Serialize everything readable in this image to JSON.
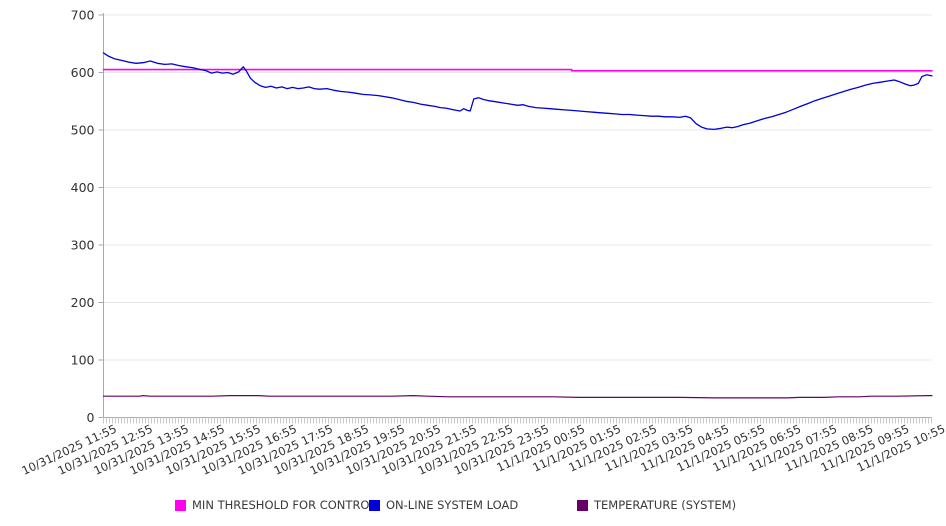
{
  "chart_data": {
    "type": "line",
    "title": "",
    "xlabel": "",
    "ylabel": "",
    "ylim": [
      0,
      700
    ],
    "y_ticks": [
      0,
      100,
      200,
      300,
      400,
      500,
      600,
      700
    ],
    "x_range_hours": 23,
    "grid": "horizontal",
    "legend_position": "bottom",
    "x_labels": [
      "10/31/2025 11:55",
      "10/31/2025 12:55",
      "10/31/2025 13:55",
      "10/31/2025 14:55",
      "10/31/2025 15:55",
      "10/31/2025 16:55",
      "10/31/2025 17:55",
      "10/31/2025 18:55",
      "10/31/2025 19:55",
      "10/31/2025 20:55",
      "10/31/2025 21:55",
      "10/31/2025 22:55",
      "10/31/2025 23:55",
      "11/1/2025 00:55",
      "11/1/2025 01:55",
      "11/1/2025 02:55",
      "11/1/2025 03:55",
      "11/1/2025 04:55",
      "11/1/2025 05:55",
      "11/1/2025 06:55",
      "11/1/2025 07:55",
      "11/1/2025 08:55",
      "11/1/2025 09:55",
      "11/1/2025 10:55"
    ],
    "colors": {
      "axis": "#aaaaaa",
      "grid": "#e8e8e8",
      "minor_tick": "#c9c9c9",
      "tick_text": "#333333"
    },
    "series": [
      {
        "name": "MIN THRESHOLD FOR CONTROL",
        "color": "#ff00f0",
        "width": 1.6,
        "points": [
          [
            0,
            605
          ],
          [
            13,
            605
          ],
          [
            13,
            603
          ],
          [
            23,
            603
          ]
        ]
      },
      {
        "name": "ON-LINE SYSTEM LOAD",
        "color": "#0000d8",
        "width": 1.3,
        "points": [
          [
            0,
            634
          ],
          [
            0.15,
            628
          ],
          [
            0.3,
            624
          ],
          [
            0.5,
            621
          ],
          [
            0.7,
            618
          ],
          [
            0.9,
            616
          ],
          [
            1.1,
            617
          ],
          [
            1.3,
            620
          ],
          [
            1.5,
            616
          ],
          [
            1.7,
            614
          ],
          [
            1.9,
            615
          ],
          [
            2.1,
            612
          ],
          [
            2.3,
            610
          ],
          [
            2.5,
            608
          ],
          [
            2.7,
            605
          ],
          [
            2.85,
            603
          ],
          [
            3,
            599
          ],
          [
            3.15,
            601
          ],
          [
            3.3,
            599
          ],
          [
            3.45,
            600
          ],
          [
            3.6,
            597
          ],
          [
            3.75,
            601
          ],
          [
            3.88,
            610
          ],
          [
            3.98,
            601
          ],
          [
            4.08,
            590
          ],
          [
            4.2,
            583
          ],
          [
            4.35,
            577
          ],
          [
            4.5,
            574
          ],
          [
            4.65,
            576
          ],
          [
            4.8,
            573
          ],
          [
            4.95,
            575
          ],
          [
            5.1,
            572
          ],
          [
            5.25,
            574
          ],
          [
            5.4,
            572
          ],
          [
            5.55,
            573
          ],
          [
            5.7,
            575
          ],
          [
            5.85,
            572
          ],
          [
            6,
            571
          ],
          [
            6.2,
            572
          ],
          [
            6.4,
            569
          ],
          [
            6.6,
            567
          ],
          [
            6.8,
            566
          ],
          [
            7,
            564
          ],
          [
            7.2,
            562
          ],
          [
            7.4,
            561
          ],
          [
            7.6,
            560
          ],
          [
            7.8,
            558
          ],
          [
            8,
            556
          ],
          [
            8.2,
            553
          ],
          [
            8.4,
            550
          ],
          [
            8.6,
            548
          ],
          [
            8.8,
            545
          ],
          [
            9,
            543
          ],
          [
            9.2,
            541
          ],
          [
            9.35,
            539
          ],
          [
            9.5,
            538
          ],
          [
            9.65,
            536
          ],
          [
            9.8,
            534
          ],
          [
            9.9,
            533
          ],
          [
            10,
            537
          ],
          [
            10.1,
            534
          ],
          [
            10.18,
            533
          ],
          [
            10.28,
            554
          ],
          [
            10.42,
            556
          ],
          [
            10.55,
            553
          ],
          [
            10.7,
            551
          ],
          [
            10.9,
            549
          ],
          [
            11.1,
            547
          ],
          [
            11.3,
            545
          ],
          [
            11.5,
            543
          ],
          [
            11.65,
            544
          ],
          [
            11.8,
            541
          ],
          [
            12,
            539
          ],
          [
            12.2,
            538
          ],
          [
            12.4,
            537
          ],
          [
            12.6,
            536
          ],
          [
            12.8,
            535
          ],
          [
            13,
            534
          ],
          [
            13.2,
            533
          ],
          [
            13.4,
            532
          ],
          [
            13.6,
            531
          ],
          [
            13.8,
            530
          ],
          [
            14,
            529
          ],
          [
            14.2,
            528
          ],
          [
            14.4,
            527
          ],
          [
            14.6,
            527
          ],
          [
            14.8,
            526
          ],
          [
            15,
            525
          ],
          [
            15.2,
            524
          ],
          [
            15.4,
            524
          ],
          [
            15.6,
            523
          ],
          [
            15.8,
            523
          ],
          [
            16,
            522
          ],
          [
            16.15,
            524
          ],
          [
            16.3,
            521
          ],
          [
            16.45,
            511
          ],
          [
            16.6,
            505
          ],
          [
            16.75,
            502
          ],
          [
            16.95,
            501
          ],
          [
            17.15,
            503
          ],
          [
            17.3,
            505
          ],
          [
            17.45,
            504
          ],
          [
            17.6,
            506
          ],
          [
            17.75,
            509
          ],
          [
            17.95,
            512
          ],
          [
            18.15,
            516
          ],
          [
            18.35,
            520
          ],
          [
            18.55,
            523
          ],
          [
            18.75,
            527
          ],
          [
            18.95,
            531
          ],
          [
            19.15,
            536
          ],
          [
            19.35,
            541
          ],
          [
            19.55,
            546
          ],
          [
            19.75,
            551
          ],
          [
            19.95,
            555
          ],
          [
            20.15,
            559
          ],
          [
            20.35,
            563
          ],
          [
            20.55,
            567
          ],
          [
            20.75,
            571
          ],
          [
            20.95,
            574
          ],
          [
            21.15,
            578
          ],
          [
            21.35,
            581
          ],
          [
            21.55,
            583
          ],
          [
            21.75,
            585
          ],
          [
            21.95,
            587
          ],
          [
            22.1,
            584
          ],
          [
            22.25,
            580
          ],
          [
            22.4,
            577
          ],
          [
            22.5,
            578
          ],
          [
            22.62,
            581
          ],
          [
            22.72,
            593
          ],
          [
            22.85,
            596
          ],
          [
            23,
            594
          ]
        ]
      },
      {
        "name": "TEMPERATURE (SYSTEM)",
        "color": "#660066",
        "width": 1.2,
        "points": [
          [
            0,
            37
          ],
          [
            1,
            37
          ],
          [
            1.1,
            38
          ],
          [
            1.3,
            37
          ],
          [
            2,
            37
          ],
          [
            3,
            37
          ],
          [
            3.5,
            38
          ],
          [
            4.3,
            38
          ],
          [
            4.6,
            37
          ],
          [
            5.5,
            37
          ],
          [
            7,
            37
          ],
          [
            8,
            37
          ],
          [
            8.6,
            38
          ],
          [
            9,
            37
          ],
          [
            9.6,
            36
          ],
          [
            10.5,
            36
          ],
          [
            11.5,
            36
          ],
          [
            12.5,
            36
          ],
          [
            13.2,
            35
          ],
          [
            14,
            35
          ],
          [
            15,
            35
          ],
          [
            16,
            35
          ],
          [
            17,
            34
          ],
          [
            18,
            34
          ],
          [
            19,
            34
          ],
          [
            19.3,
            35
          ],
          [
            20,
            35
          ],
          [
            20.4,
            36
          ],
          [
            21,
            36
          ],
          [
            21.3,
            37
          ],
          [
            22,
            37
          ],
          [
            22.9,
            38
          ],
          [
            23,
            38
          ]
        ]
      }
    ]
  }
}
